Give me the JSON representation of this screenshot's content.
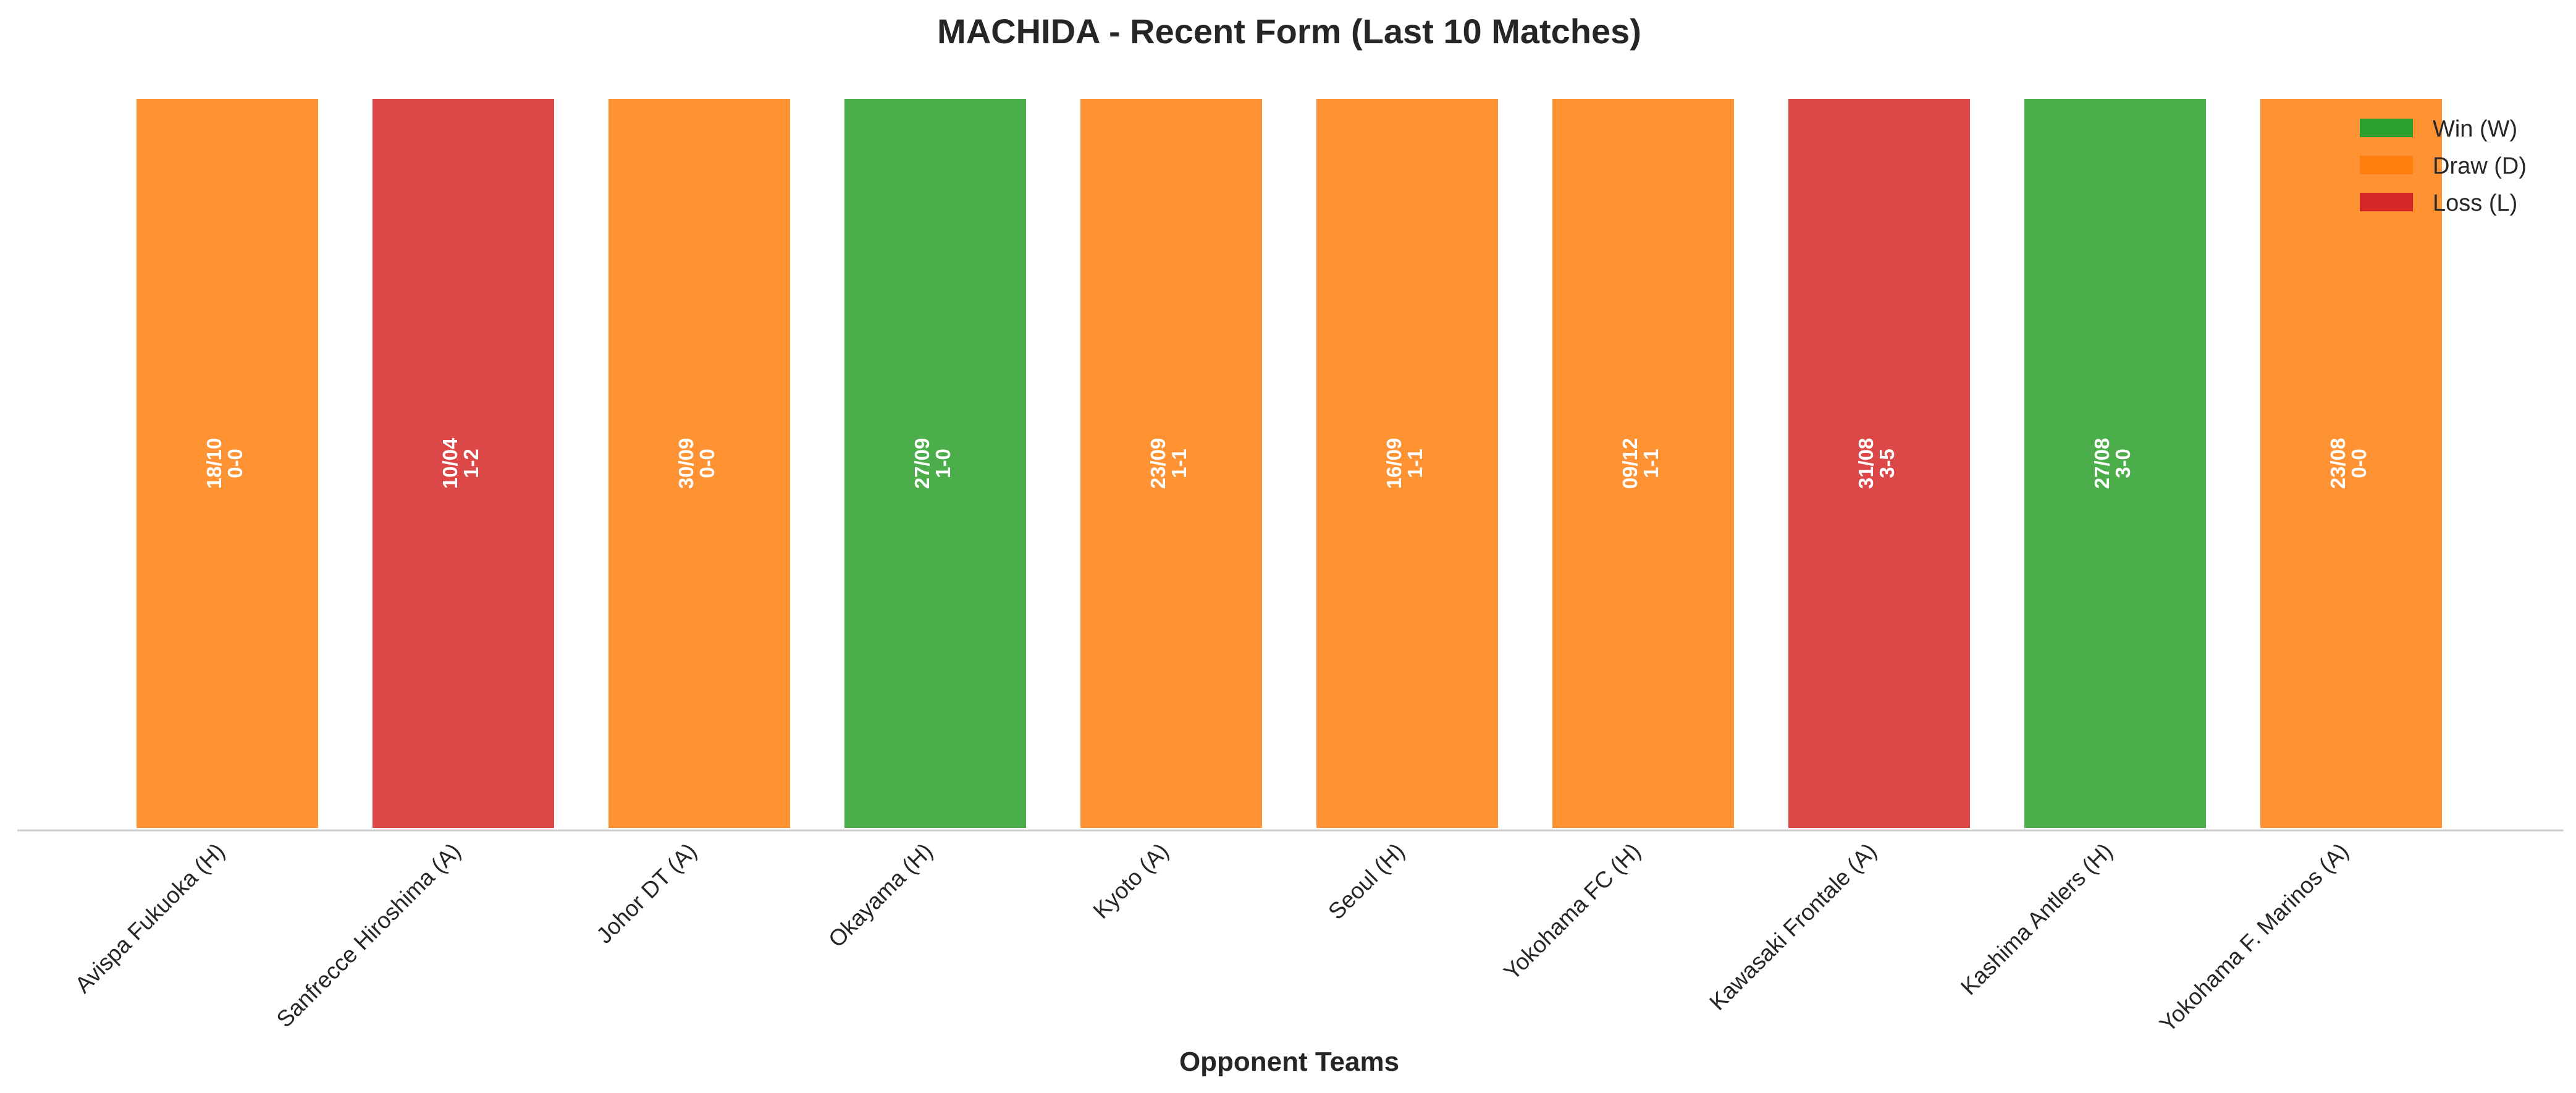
{
  "chart_data": {
    "type": "bar",
    "title": "MACHIDA - Recent Form (Last 10 Matches)",
    "xlabel": "Opponent Teams",
    "ylabel": "",
    "ylim": [
      0,
      1
    ],
    "grid": false,
    "legend_position": "top-right",
    "categories": [
      "Avispa Fukuoka (H)",
      "Sanfrecce Hiroshima (A)",
      "Johor DT (A)",
      "Okayama (H)",
      "Kyoto (A)",
      "Seoul (H)",
      "Yokohama FC (H)",
      "Kawasaki Frontale (A)",
      "Kashima Antlers (H)",
      "Yokohama F. Marinos (A)"
    ],
    "values": [
      1,
      1,
      1,
      1,
      1,
      1,
      1,
      1,
      1,
      1
    ],
    "results": [
      "D",
      "L",
      "D",
      "W",
      "D",
      "D",
      "D",
      "L",
      "W",
      "D"
    ],
    "dates": [
      "18/10",
      "10/04",
      "30/09",
      "27/09",
      "23/09",
      "16/09",
      "09/12",
      "31/08",
      "27/08",
      "23/08"
    ],
    "scores": [
      "0-0",
      "1-2",
      "0-0",
      "1-0",
      "1-1",
      "1-1",
      "1-1",
      "3-5",
      "3-0",
      "0-0"
    ],
    "colors": {
      "W": "#2ca02c",
      "D": "#ff7f0e",
      "L": "#d62728"
    },
    "legend": [
      {
        "key": "W",
        "label": "Win (W)"
      },
      {
        "key": "D",
        "label": "Draw (D)"
      },
      {
        "key": "L",
        "label": "Loss (L)"
      }
    ]
  }
}
